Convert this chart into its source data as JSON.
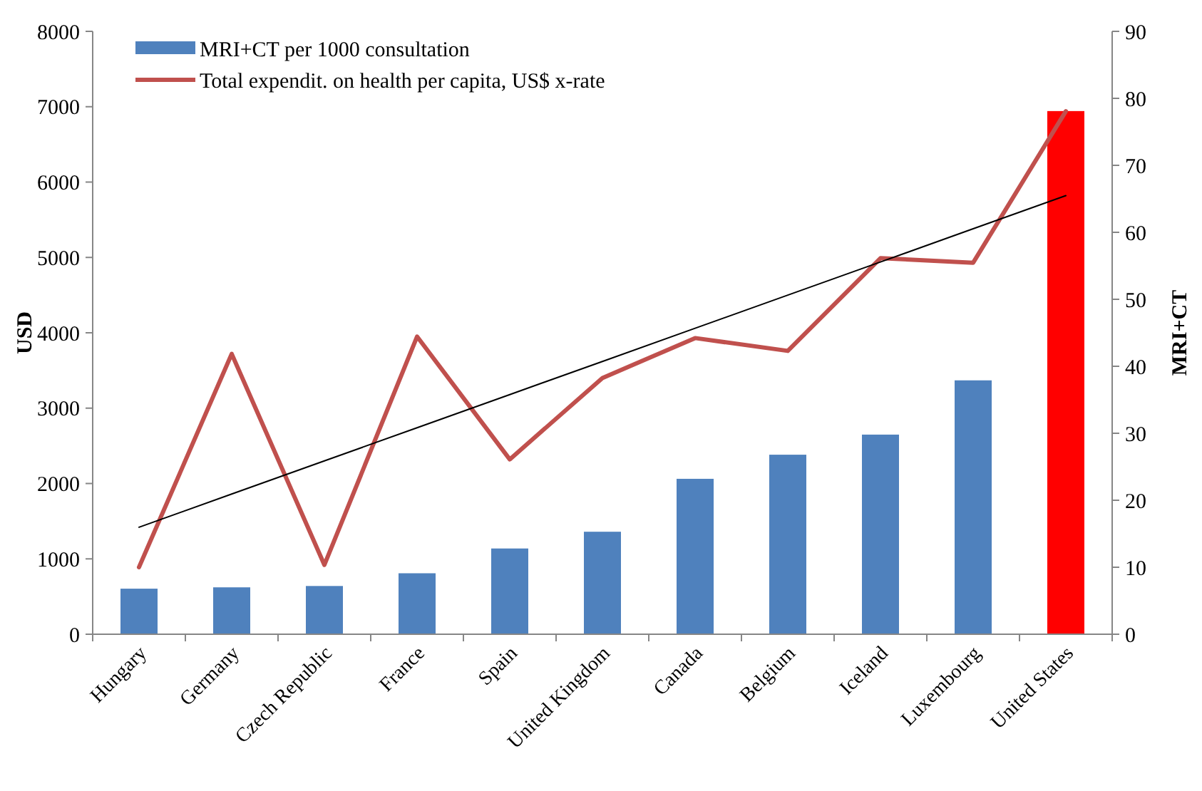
{
  "chart_data": {
    "type": "bar",
    "ylabel": "USD",
    "y2label": "MRI+CT",
    "categories": [
      "Hungary",
      "Germany",
      "Czech Republic",
      "France",
      "Spain",
      "United Kingdom",
      "Canada",
      "Belgium",
      "Iceland",
      "Luxembourg",
      "United States"
    ],
    "series": [
      {
        "name": "MRI+CT per 1000 consultation",
        "axis": "y2",
        "color": "#4f81bd",
        "colors": [
          "#4f81bd",
          "#4f81bd",
          "#4f81bd",
          "#4f81bd",
          "#4f81bd",
          "#4f81bd",
          "#4f81bd",
          "#4f81bd",
          "#4f81bd",
          "#4f81bd",
          "#ff0000"
        ],
        "values": [
          6.8,
          7.0,
          7.2,
          9.1,
          12.8,
          15.3,
          23.2,
          26.8,
          29.8,
          37.9,
          78.1
        ]
      },
      {
        "name": "Total expendit. on health per capita, US$ x-rate",
        "type": "line",
        "axis": "y",
        "color": "#c0504d",
        "values": [
          890,
          3720,
          920,
          3950,
          2320,
          3400,
          3930,
          3760,
          4990,
          4930,
          6940
        ]
      },
      {
        "type": "line",
        "axis": "y",
        "color": "#000000",
        "values": [
          1420,
          1860,
          2300,
          2740,
          3180,
          3620,
          4060,
          4500,
          4940,
          5380,
          5820
        ]
      }
    ],
    "ylim": [
      0,
      8000
    ],
    "yticks": [
      0,
      1000,
      2000,
      3000,
      4000,
      5000,
      6000,
      7000,
      8000
    ],
    "y2lim": [
      0,
      90
    ],
    "y2ticks": [
      0,
      10,
      20,
      30,
      40,
      50,
      60,
      70,
      80,
      90
    ],
    "grid": false,
    "legend": "top left"
  }
}
